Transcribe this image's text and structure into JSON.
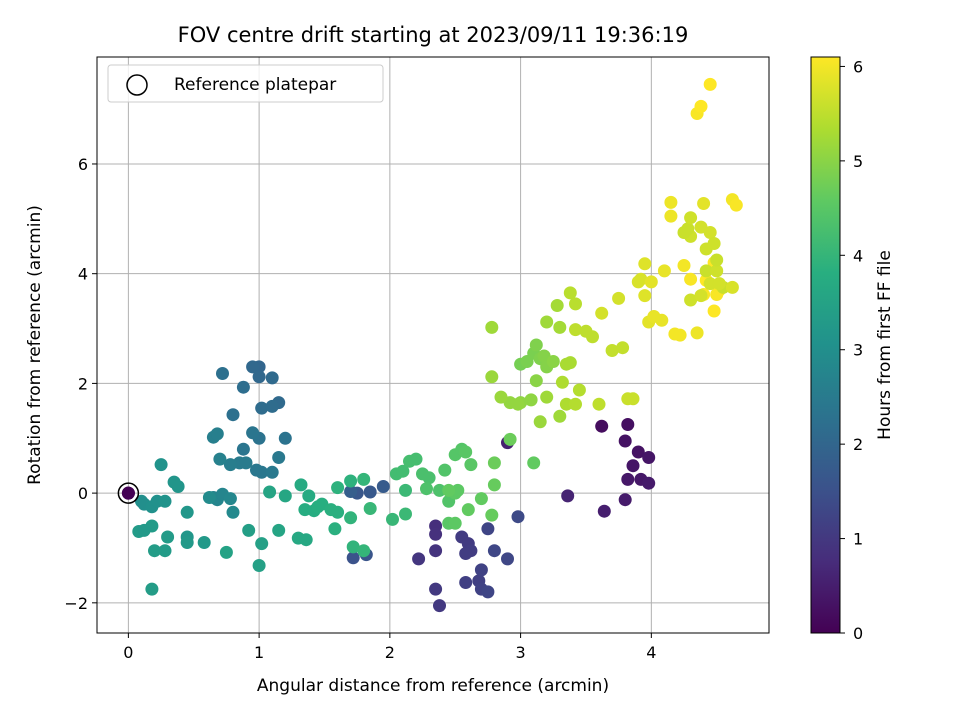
{
  "chart_data": {
    "type": "scatter",
    "title": "FOV centre drift starting at 2023/09/11 19:36:19",
    "xlabel": "Angular distance from reference (arcmin)",
    "ylabel": "Rotation from reference (arcmin)",
    "xlim": [
      -0.24,
      4.9
    ],
    "ylim": [
      -2.55,
      7.95
    ],
    "xticks": [
      0,
      1,
      2,
      3,
      4
    ],
    "yticks": [
      -2,
      0,
      2,
      4,
      6
    ],
    "grid": true,
    "legend": {
      "placement": "top-left",
      "entries": [
        "Reference platepar"
      ]
    },
    "reference_point": {
      "x": 0.0,
      "y": 0.0,
      "label": "Reference platepar"
    },
    "colorbar": {
      "label": "Hours from first FF file",
      "colormap": "viridis",
      "range": [
        0,
        6.1
      ],
      "ticks": [
        0,
        1,
        2,
        3,
        4,
        5,
        6
      ]
    },
    "points": [
      [
        0.0,
        0.0,
        0.0
      ],
      [
        3.62,
        1.22,
        0.2
      ],
      [
        3.82,
        1.25,
        0.25
      ],
      [
        3.8,
        0.95,
        0.3
      ],
      [
        3.9,
        0.75,
        0.3
      ],
      [
        3.98,
        0.65,
        0.35
      ],
      [
        3.86,
        0.5,
        0.35
      ],
      [
        3.82,
        0.25,
        0.4
      ],
      [
        3.92,
        0.25,
        0.4
      ],
      [
        3.98,
        0.18,
        0.45
      ],
      [
        3.8,
        -0.12,
        0.45
      ],
      [
        3.64,
        -0.33,
        0.5
      ],
      [
        2.9,
        0.92,
        0.55
      ],
      [
        3.36,
        -0.05,
        0.6
      ],
      [
        2.35,
        -0.6,
        0.8
      ],
      [
        2.35,
        -0.75,
        0.85
      ],
      [
        2.35,
        -1.05,
        0.9
      ],
      [
        2.22,
        -1.2,
        0.95
      ],
      [
        2.35,
        -1.75,
        1.0
      ],
      [
        2.38,
        -2.05,
        1.0
      ],
      [
        2.55,
        -0.8,
        1.05
      ],
      [
        2.6,
        -0.92,
        1.05
      ],
      [
        2.62,
        -1.05,
        1.1
      ],
      [
        2.58,
        -1.1,
        1.1
      ],
      [
        2.58,
        -1.63,
        1.15
      ],
      [
        2.68,
        -1.6,
        1.15
      ],
      [
        2.7,
        -1.4,
        1.2
      ],
      [
        2.7,
        -1.75,
        1.2
      ],
      [
        2.75,
        -1.8,
        1.25
      ],
      [
        2.75,
        -0.65,
        1.25
      ],
      [
        2.8,
        -1.05,
        1.3
      ],
      [
        2.9,
        -1.2,
        1.3
      ],
      [
        2.98,
        -0.43,
        1.35
      ],
      [
        1.72,
        -1.18,
        1.55
      ],
      [
        1.82,
        -1.12,
        1.6
      ],
      [
        1.75,
        0.0,
        1.65
      ],
      [
        1.85,
        0.02,
        1.7
      ],
      [
        1.95,
        0.12,
        1.75
      ],
      [
        1.7,
        0.03,
        1.8
      ],
      [
        1.0,
        2.3,
        2.0
      ],
      [
        0.95,
        2.3,
        2.05
      ],
      [
        1.0,
        2.12,
        2.05
      ],
      [
        1.1,
        2.1,
        2.1
      ],
      [
        1.15,
        1.65,
        2.1
      ],
      [
        1.02,
        1.55,
        2.15
      ],
      [
        1.1,
        1.58,
        2.15
      ],
      [
        0.88,
        1.93,
        2.2
      ],
      [
        0.8,
        1.43,
        2.25
      ],
      [
        0.72,
        2.18,
        2.25
      ],
      [
        1.0,
        1.0,
        2.3
      ],
      [
        1.2,
        1.0,
        2.3
      ],
      [
        0.95,
        1.1,
        2.35
      ],
      [
        0.88,
        0.8,
        2.35
      ],
      [
        0.98,
        0.42,
        2.4
      ],
      [
        1.02,
        0.38,
        2.4
      ],
      [
        1.1,
        0.38,
        2.45
      ],
      [
        1.15,
        0.65,
        2.45
      ],
      [
        0.85,
        0.55,
        2.5
      ],
      [
        0.9,
        0.55,
        2.5
      ],
      [
        0.78,
        0.52,
        2.55
      ],
      [
        0.65,
        1.02,
        2.6
      ],
      [
        0.68,
        1.08,
        2.6
      ],
      [
        0.7,
        0.62,
        2.65
      ],
      [
        0.65,
        -0.08,
        2.7
      ],
      [
        0.68,
        -0.12,
        2.75
      ],
      [
        0.72,
        -0.02,
        2.75
      ],
      [
        0.78,
        -0.1,
        2.8
      ],
      [
        0.8,
        -0.35,
        2.85
      ],
      [
        0.62,
        -0.08,
        2.9
      ],
      [
        0.1,
        -0.15,
        3.0
      ],
      [
        0.12,
        -0.2,
        3.0
      ],
      [
        0.18,
        -0.25,
        3.05
      ],
      [
        0.22,
        -0.15,
        3.05
      ],
      [
        0.28,
        -0.15,
        3.1
      ],
      [
        0.25,
        0.52,
        3.1
      ],
      [
        0.35,
        0.2,
        3.15
      ],
      [
        0.38,
        0.12,
        3.15
      ],
      [
        0.45,
        -0.35,
        3.2
      ],
      [
        0.45,
        -0.8,
        3.2
      ],
      [
        0.45,
        -0.9,
        3.25
      ],
      [
        0.58,
        -0.9,
        3.25
      ],
      [
        0.3,
        -0.8,
        3.3
      ],
      [
        0.28,
        -1.05,
        3.3
      ],
      [
        0.2,
        -1.05,
        3.35
      ],
      [
        0.18,
        -1.75,
        3.35
      ],
      [
        0.18,
        -0.6,
        3.3
      ],
      [
        0.08,
        -0.7,
        3.3
      ],
      [
        0.12,
        -0.68,
        3.25
      ],
      [
        0.92,
        -0.68,
        3.4
      ],
      [
        1.02,
        -0.92,
        3.45
      ],
      [
        1.0,
        -1.32,
        3.45
      ],
      [
        0.75,
        -1.08,
        3.5
      ],
      [
        1.15,
        -0.68,
        3.55
      ],
      [
        1.08,
        0.02,
        3.55
      ],
      [
        1.2,
        -0.05,
        3.6
      ],
      [
        1.3,
        -0.82,
        3.65
      ],
      [
        1.36,
        -0.85,
        3.65
      ],
      [
        1.32,
        0.15,
        3.7
      ],
      [
        1.38,
        -0.05,
        3.7
      ],
      [
        1.35,
        -0.3,
        3.75
      ],
      [
        1.42,
        -0.32,
        3.75
      ],
      [
        1.45,
        -0.25,
        3.8
      ],
      [
        1.48,
        -0.2,
        3.8
      ],
      [
        1.55,
        -0.3,
        3.85
      ],
      [
        1.6,
        -0.35,
        3.85
      ],
      [
        1.58,
        -0.65,
        3.85
      ],
      [
        1.6,
        0.1,
        3.9
      ],
      [
        1.7,
        0.22,
        3.9
      ],
      [
        1.7,
        -0.45,
        3.95
      ],
      [
        1.72,
        -0.98,
        3.95
      ],
      [
        1.8,
        -1.05,
        4.0
      ],
      [
        1.8,
        0.25,
        4.0
      ],
      [
        1.85,
        -0.28,
        4.05
      ],
      [
        2.02,
        -0.48,
        4.05
      ],
      [
        2.12,
        -0.38,
        4.1
      ],
      [
        2.12,
        0.05,
        4.1
      ],
      [
        2.05,
        0.35,
        4.2
      ],
      [
        2.1,
        0.4,
        4.2
      ],
      [
        2.15,
        0.58,
        4.25
      ],
      [
        2.2,
        0.62,
        4.25
      ],
      [
        2.25,
        0.35,
        4.3
      ],
      [
        2.3,
        0.28,
        4.3
      ],
      [
        2.28,
        0.08,
        4.35
      ],
      [
        2.38,
        0.05,
        4.35
      ],
      [
        2.45,
        -0.15,
        4.4
      ],
      [
        2.42,
        0.42,
        4.4
      ],
      [
        2.5,
        0.7,
        4.45
      ],
      [
        2.55,
        0.8,
        4.45
      ],
      [
        2.58,
        0.75,
        4.5
      ],
      [
        2.62,
        0.52,
        4.5
      ],
      [
        2.5,
        0.0,
        4.55
      ],
      [
        2.52,
        0.05,
        4.55
      ],
      [
        2.6,
        -0.3,
        4.6
      ],
      [
        2.7,
        -0.1,
        4.6
      ],
      [
        2.78,
        -0.4,
        4.65
      ],
      [
        2.8,
        0.15,
        4.65
      ],
      [
        2.8,
        0.55,
        4.7
      ],
      [
        2.92,
        0.98,
        4.7
      ],
      [
        2.45,
        -0.55,
        4.5
      ],
      [
        2.5,
        -0.55,
        4.55
      ],
      [
        2.45,
        0.05,
        4.6
      ],
      [
        3.1,
        0.55,
        4.6
      ],
      [
        3.0,
        2.35,
        4.8
      ],
      [
        3.05,
        2.4,
        4.85
      ],
      [
        3.1,
        2.55,
        4.85
      ],
      [
        3.12,
        2.7,
        4.9
      ],
      [
        3.15,
        2.45,
        4.9
      ],
      [
        3.18,
        2.5,
        4.95
      ],
      [
        3.2,
        2.3,
        4.95
      ],
      [
        3.25,
        2.4,
        5.0
      ],
      [
        3.12,
        2.05,
        5.0
      ],
      [
        3.08,
        1.7,
        5.05
      ],
      [
        3.0,
        1.65,
        5.05
      ],
      [
        2.98,
        1.62,
        5.1
      ],
      [
        2.92,
        1.65,
        5.1
      ],
      [
        2.85,
        1.75,
        5.15
      ],
      [
        2.78,
        2.12,
        5.15
      ],
      [
        2.78,
        3.02,
        5.2
      ],
      [
        3.2,
        3.12,
        5.2
      ],
      [
        3.28,
        3.42,
        5.25
      ],
      [
        3.3,
        3.02,
        5.25
      ],
      [
        3.35,
        2.35,
        5.3
      ],
      [
        3.38,
        2.38,
        5.3
      ],
      [
        3.32,
        2.02,
        5.35
      ],
      [
        3.35,
        1.62,
        5.35
      ],
      [
        3.42,
        1.62,
        5.4
      ],
      [
        3.45,
        1.88,
        5.4
      ],
      [
        3.38,
        3.65,
        5.45
      ],
      [
        3.42,
        3.45,
        5.45
      ],
      [
        3.42,
        2.98,
        5.5
      ],
      [
        3.5,
        2.95,
        5.5
      ],
      [
        3.55,
        2.85,
        5.5
      ],
      [
        3.2,
        1.75,
        5.2
      ],
      [
        3.15,
        1.3,
        5.15
      ],
      [
        3.3,
        1.4,
        5.2
      ],
      [
        3.6,
        1.62,
        5.5
      ],
      [
        3.7,
        2.6,
        5.55
      ],
      [
        3.78,
        2.65,
        5.55
      ],
      [
        3.82,
        1.72,
        5.6
      ],
      [
        3.86,
        1.72,
        5.6
      ],
      [
        3.75,
        3.55,
        5.7
      ],
      [
        3.62,
        3.28,
        5.7
      ],
      [
        3.9,
        3.85,
        5.75
      ],
      [
        3.92,
        3.9,
        5.75
      ],
      [
        3.95,
        3.6,
        5.8
      ],
      [
        3.95,
        4.18,
        5.8
      ],
      [
        3.98,
        3.12,
        5.85
      ],
      [
        4.0,
        3.85,
        5.85
      ],
      [
        4.02,
        3.22,
        5.9
      ],
      [
        4.08,
        3.15,
        5.9
      ],
      [
        4.1,
        4.05,
        5.9
      ],
      [
        4.15,
        5.05,
        5.95
      ],
      [
        4.15,
        5.3,
        5.95
      ],
      [
        4.18,
        2.9,
        6.0
      ],
      [
        4.22,
        2.88,
        6.0
      ],
      [
        4.25,
        4.15,
        6.0
      ],
      [
        4.3,
        3.9,
        6.05
      ],
      [
        4.4,
        3.62,
        6.05
      ],
      [
        4.42,
        3.88,
        6.1
      ],
      [
        4.48,
        3.32,
        6.1
      ],
      [
        4.48,
        4.2,
        6.1
      ],
      [
        4.52,
        3.7,
        6.05
      ],
      [
        4.5,
        3.62,
        6.05
      ],
      [
        4.35,
        2.92,
        5.95
      ],
      [
        4.3,
        3.52,
        5.65
      ],
      [
        4.38,
        3.6,
        5.7
      ],
      [
        4.45,
        3.82,
        5.7
      ],
      [
        4.3,
        4.68,
        5.65
      ],
      [
        4.28,
        4.82,
        5.6
      ],
      [
        4.25,
        4.75,
        5.6
      ],
      [
        4.3,
        5.02,
        5.65
      ],
      [
        4.38,
        4.85,
        5.7
      ],
      [
        4.42,
        4.45,
        5.65
      ],
      [
        4.45,
        4.75,
        5.7
      ],
      [
        4.48,
        4.55,
        5.65
      ],
      [
        4.55,
        3.75,
        5.6
      ],
      [
        4.42,
        4.05,
        5.6
      ],
      [
        4.5,
        4.05,
        5.65
      ],
      [
        4.5,
        4.25,
        5.6
      ],
      [
        4.52,
        3.82,
        5.7
      ],
      [
        4.62,
        3.75,
        5.75
      ],
      [
        4.4,
        5.28,
        5.85
      ],
      [
        4.62,
        5.35,
        6.0
      ],
      [
        4.65,
        5.25,
        6.05
      ],
      [
        4.35,
        6.92,
        6.05
      ],
      [
        4.38,
        7.05,
        6.1
      ],
      [
        4.45,
        7.45,
        6.1
      ]
    ]
  }
}
